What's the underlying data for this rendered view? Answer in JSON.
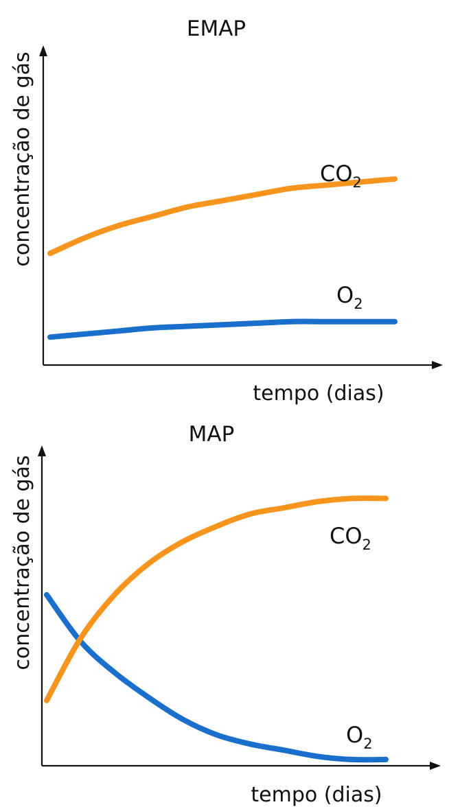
{
  "chart_data": [
    {
      "type": "line",
      "title": "EMAP",
      "xlabel": "tempo (dias)",
      "ylabel": "concentração de gás",
      "xlim": [
        0,
        100
      ],
      "ylim": [
        0,
        100
      ],
      "grid": false,
      "legend": "inline labels",
      "series": [
        {
          "name": "CO",
          "subscript": "2",
          "color": "#f7941d",
          "x": [
            0,
            10,
            20,
            30,
            40,
            50,
            60,
            70,
            80,
            90,
            100
          ],
          "y": [
            36,
            41,
            45,
            48,
            51,
            53,
            55,
            57,
            58,
            59,
            60
          ]
        },
        {
          "name": "O",
          "subscript": "2",
          "color": "#1a6fcc",
          "x": [
            0,
            10,
            20,
            30,
            40,
            50,
            60,
            70,
            80,
            90,
            100
          ],
          "y": [
            9,
            10,
            11,
            12,
            12.5,
            13,
            13.5,
            14,
            14,
            14,
            14
          ]
        }
      ]
    },
    {
      "type": "line",
      "title": "MAP",
      "xlabel": "tempo (dias)",
      "ylabel": "concentração de gás",
      "xlim": [
        0,
        100
      ],
      "ylim": [
        0,
        100
      ],
      "grid": false,
      "legend": "inline labels",
      "series": [
        {
          "name": "CO",
          "subscript": "2",
          "color": "#f7941d",
          "x": [
            0,
            10,
            20,
            30,
            40,
            50,
            60,
            70,
            80,
            90,
            100
          ],
          "y": [
            21,
            41,
            55,
            65,
            72,
            77,
            81,
            83,
            85,
            86,
            86
          ]
        },
        {
          "name": "O",
          "subscript": "2",
          "color": "#1a6fcc",
          "x": [
            0,
            10,
            20,
            30,
            40,
            50,
            60,
            70,
            80,
            90,
            100
          ],
          "y": [
            55,
            40,
            30,
            22,
            15,
            10,
            7,
            5,
            3,
            2,
            2
          ]
        }
      ]
    }
  ]
}
